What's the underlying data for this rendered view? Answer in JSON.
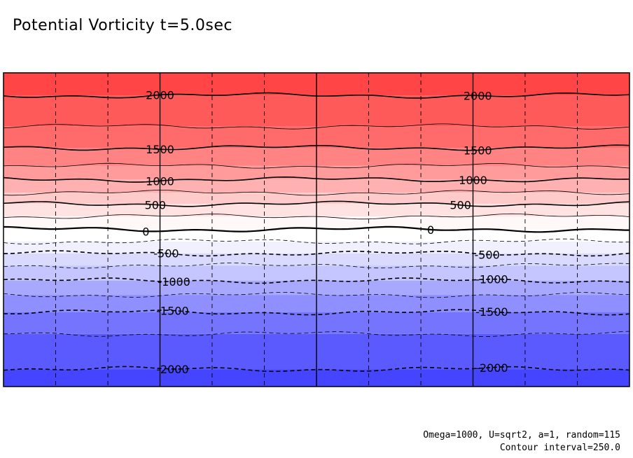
{
  "chart_data": {
    "type": "contour",
    "title": "Potential Vorticity t=5.0sec",
    "variable": "potential vorticity",
    "xlim": [
      0,
      4
    ],
    "ylim": [
      -2250,
      2250
    ],
    "fill_levels": [
      {
        "from": 2000,
        "to": 2250,
        "color": "#ff4545"
      },
      {
        "from": 1750,
        "to": 2000,
        "color": "#ff5a5a"
      },
      {
        "from": 1500,
        "to": 1750,
        "color": "#ff6b6b"
      },
      {
        "from": 1250,
        "to": 1500,
        "color": "#ff8383"
      },
      {
        "from": 1000,
        "to": 1250,
        "color": "#ff9b9b"
      },
      {
        "from": 750,
        "to": 1000,
        "color": "#ffb1b1"
      },
      {
        "from": 500,
        "to": 750,
        "color": "#ffcaca"
      },
      {
        "from": 250,
        "to": 500,
        "color": "#ffe3e3"
      },
      {
        "from": 0,
        "to": 250,
        "color": "#fff8f8"
      },
      {
        "from": -250,
        "to": 0,
        "color": "#ffffff"
      },
      {
        "from": -500,
        "to": -250,
        "color": "#f0f0ff"
      },
      {
        "from": -750,
        "to": -500,
        "color": "#dadaff"
      },
      {
        "from": -1000,
        "to": -750,
        "color": "#c5c5ff"
      },
      {
        "from": -1250,
        "to": -1000,
        "color": "#a8a8ff"
      },
      {
        "from": -1500,
        "to": -1250,
        "color": "#8f8fff"
      },
      {
        "from": -1750,
        "to": -1500,
        "color": "#7474ff"
      },
      {
        "from": -2000,
        "to": -1750,
        "color": "#5a5aff"
      },
      {
        "from": -2250,
        "to": -2000,
        "color": "#4545ff"
      }
    ],
    "contours": [
      {
        "level": 2000,
        "y": 1925,
        "style": "major"
      },
      {
        "level": 1750,
        "y": 1480,
        "style": "minor"
      },
      {
        "level": 1500,
        "y": 1175,
        "style": "major"
      },
      {
        "level": 1250,
        "y": 915,
        "style": "minor"
      },
      {
        "level": 1000,
        "y": 720,
        "style": "major"
      },
      {
        "level": 750,
        "y": 530,
        "style": "minor"
      },
      {
        "level": 500,
        "y": 370,
        "style": "major"
      },
      {
        "level": 250,
        "y": 190,
        "style": "minor"
      },
      {
        "level": 0,
        "y": 5,
        "style": "major"
      },
      {
        "level": -250,
        "y": -170,
        "style": "minor"
      },
      {
        "level": -500,
        "y": -340,
        "style": "major"
      },
      {
        "level": -750,
        "y": -515,
        "style": "minor"
      },
      {
        "level": -1000,
        "y": -730,
        "style": "major"
      },
      {
        "level": -1250,
        "y": -935,
        "style": "minor"
      },
      {
        "level": -1500,
        "y": -1185,
        "style": "major"
      },
      {
        "level": -1750,
        "y": -1495,
        "style": "minor"
      },
      {
        "level": -2000,
        "y": -2000,
        "style": "major"
      }
    ],
    "contour_labels": [
      {
        "text": "2000",
        "level": 2000,
        "x": 1.0
      },
      {
        "text": "2000",
        "level": 2000,
        "x": 3.03
      },
      {
        "text": "1500",
        "level": 1500,
        "x": 1.0
      },
      {
        "text": "1500",
        "level": 1500,
        "x": 3.03
      },
      {
        "text": "1000",
        "level": 1000,
        "x": 1.0
      },
      {
        "text": "1000",
        "level": 1000,
        "x": 3.0
      },
      {
        "text": "500",
        "level": 500,
        "x": 0.97
      },
      {
        "text": "500",
        "level": 500,
        "x": 2.92
      },
      {
        "text": "0",
        "level": 0,
        "x": 0.91
      },
      {
        "text": "0",
        "level": 0,
        "x": 2.73
      },
      {
        "text": "-500",
        "level": -500,
        "x": 1.04
      },
      {
        "text": "-500",
        "level": -500,
        "x": 3.09
      },
      {
        "text": "-1000",
        "level": -1000,
        "x": 1.09
      },
      {
        "text": "-1000",
        "level": -1000,
        "x": 3.12
      },
      {
        "text": "-1500",
        "level": -1500,
        "x": 1.08
      },
      {
        "text": "-1500",
        "level": -1500,
        "x": 3.12
      },
      {
        "text": "-2000",
        "level": -2000,
        "x": 1.08
      },
      {
        "text": "-2000",
        "level": -2000,
        "x": 3.12
      }
    ],
    "grid": {
      "solid_x": [
        1,
        2,
        3
      ],
      "dashed_x": [
        0.333,
        0.667,
        1.333,
        1.667,
        2.333,
        2.667,
        3.333,
        3.667
      ],
      "dashed_y_levels": [
        1750,
        1250,
        750,
        250,
        -250,
        -750,
        -1250,
        -1750
      ]
    }
  },
  "annotations": {
    "params": "Omega=1000, U=sqrt2, a=1, random=115",
    "interval": "Contour interval=250.0"
  }
}
